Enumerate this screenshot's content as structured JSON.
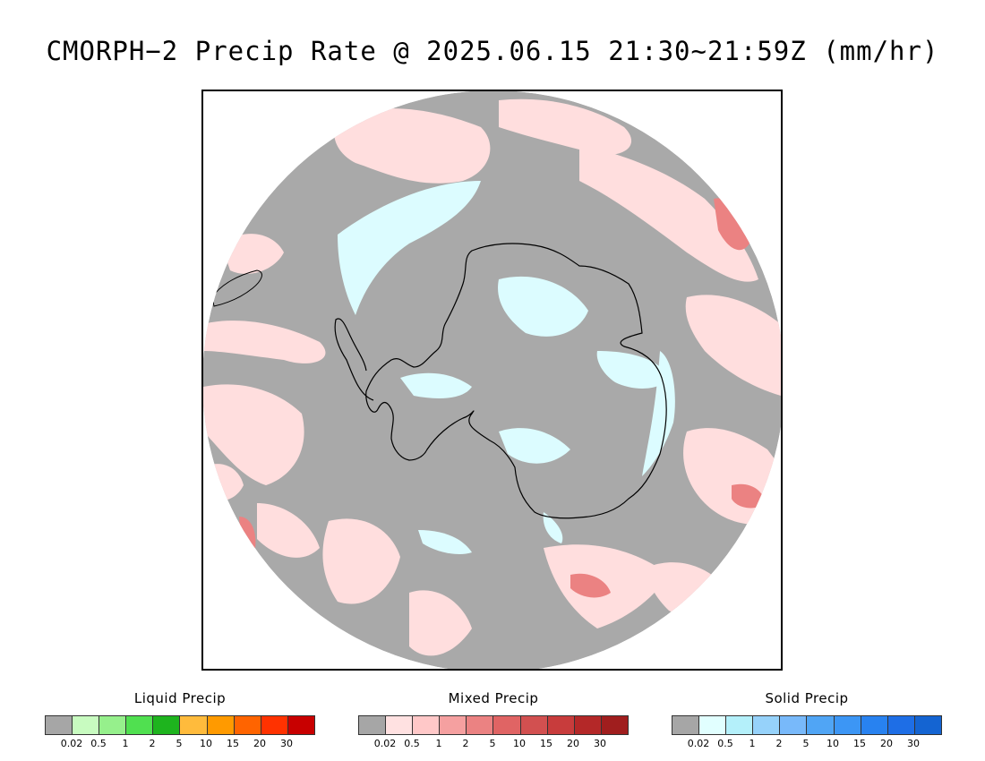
{
  "title": "CMORPH−2 Precip Rate @ 2025.06.15 21:30~21:59Z (mm/hr)",
  "map": {
    "projection": "south-polar-stereographic",
    "background_color": "#a9a9a9",
    "land_outline_color": "#000000"
  },
  "legends": [
    {
      "id": "liquid",
      "title": "Liquid Precip",
      "colors": [
        "#a6a6a6",
        "#c8fbc0",
        "#96f08c",
        "#50e050",
        "#1eb41e",
        "#ffbb3c",
        "#ff9a00",
        "#ff6400",
        "#ff3200",
        "#c80000"
      ],
      "ticks": [
        "0.02",
        "0.5",
        "1",
        "2",
        "5",
        "10",
        "15",
        "20",
        "30"
      ]
    },
    {
      "id": "mixed",
      "title": "Mixed Precip",
      "colors": [
        "#a6a6a6",
        "#ffe1e1",
        "#ffc8c8",
        "#f5a0a0",
        "#eb8282",
        "#e06464",
        "#d25050",
        "#c83c3c",
        "#b42828",
        "#a01e1e"
      ],
      "ticks": [
        "0.02",
        "0.5",
        "1",
        "2",
        "5",
        "10",
        "15",
        "20",
        "30"
      ]
    },
    {
      "id": "solid",
      "title": "Solid Precip",
      "colors": [
        "#a6a6a6",
        "#e1ffff",
        "#b4f0fa",
        "#96d2fa",
        "#78b9fa",
        "#50a5f5",
        "#3c96f5",
        "#2882f0",
        "#1e6ee6",
        "#1464d2"
      ],
      "ticks": [
        "0.02",
        "0.5",
        "1",
        "2",
        "5",
        "10",
        "15",
        "20",
        "30"
      ]
    }
  ]
}
